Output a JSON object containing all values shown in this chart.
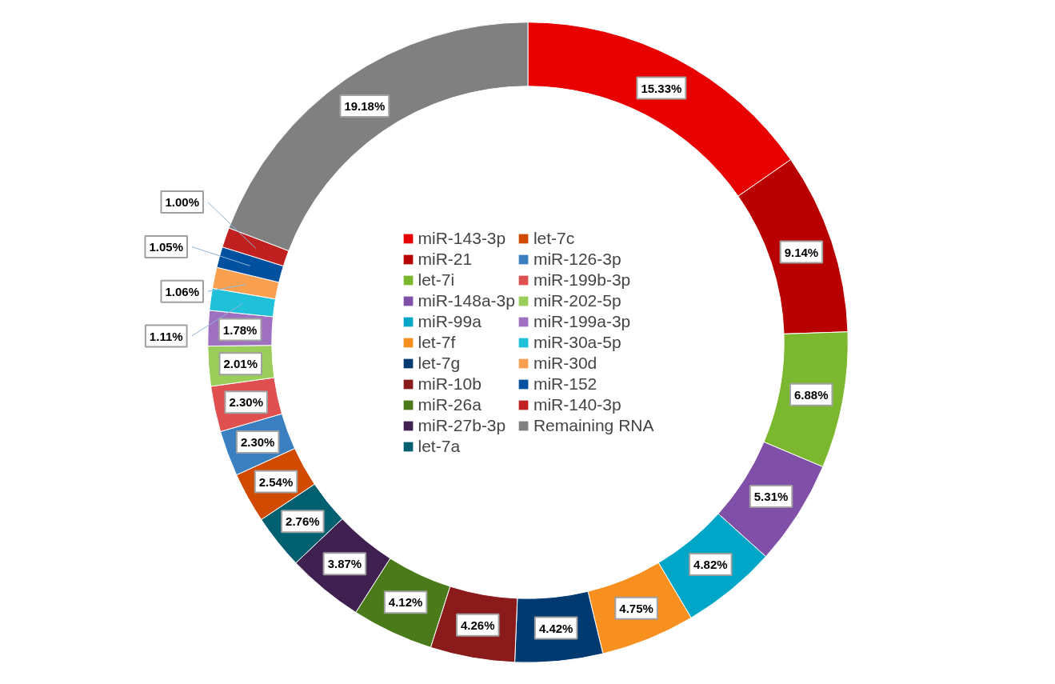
{
  "chart_data": {
    "type": "donut",
    "categories": [
      "miR-143-3p",
      "miR-21",
      "let-7i",
      "miR-148a-3p",
      "miR-99a",
      "let-7f",
      "let-7g",
      "miR-10b",
      "miR-26a",
      "miR-27b-3p",
      "let-7a",
      "let-7c",
      "miR-126-3p",
      "miR-199b-3p",
      "miR-202-5p",
      "miR-199a-3p",
      "miR-30a-5p",
      "miR-30d",
      "miR-152",
      "miR-140-3p",
      "Remaining RNA"
    ],
    "values": [
      15.33,
      9.14,
      6.88,
      5.31,
      4.82,
      4.75,
      4.42,
      4.26,
      4.12,
      3.87,
      2.76,
      2.54,
      2.3,
      2.3,
      2.01,
      1.78,
      1.11,
      1.06,
      1.05,
      1.0,
      19.18
    ],
    "colors": [
      "#e80000",
      "#b80000",
      "#7cb82f",
      "#8050a8",
      "#00a6c8",
      "#f7901e",
      "#003a70",
      "#8b1a1a",
      "#4a7a1a",
      "#3f2050",
      "#006070",
      "#d04a00",
      "#3a80c0",
      "#e05050",
      "#9acd5a",
      "#a070c0",
      "#20c0d8",
      "#f8a050",
      "#0050a0",
      "#c02020",
      "#808080"
    ],
    "value_labels": [
      "15.33%",
      "9.14%",
      "6.88%",
      "5.31%",
      "4.82%",
      "4.75%",
      "4.42%",
      "4.26%",
      "4.12%",
      "3.87%",
      "2.76%",
      "2.54%",
      "2.30%",
      "2.30%",
      "2.01%",
      "1.78%",
      "1.11%",
      "1.06%",
      "1.05%",
      "1.00%",
      "19.18%"
    ],
    "legend": "center"
  }
}
